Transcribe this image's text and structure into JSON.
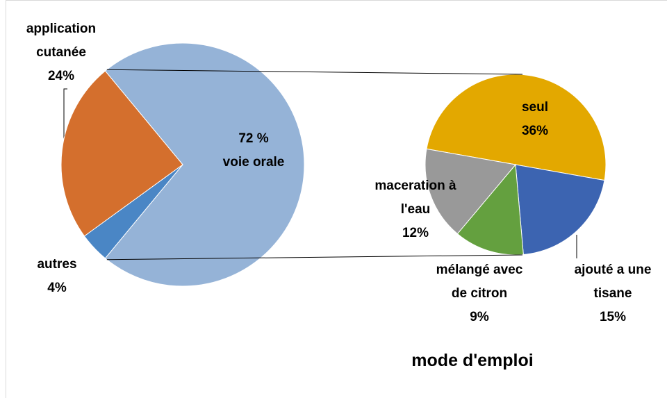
{
  "chart_data": {
    "type": "pie-of-pie",
    "title": "mode d'emploi",
    "categories": [
      "voie orale",
      "autres",
      "application cutanée"
    ],
    "values": [
      72,
      4,
      24
    ],
    "value_labels": [
      "72 %",
      "4%",
      "24%"
    ],
    "colors": [
      "#95b3d7",
      "#4a86c5",
      "#d46f2d"
    ],
    "breakdown": {
      "categories": [
        "seul",
        "ajouté a une tisane",
        "mélangé avec de citron",
        "maceration à l'eau"
      ],
      "values": [
        36,
        15,
        9,
        12
      ],
      "value_labels": [
        "36%",
        "15%",
        "9%",
        "12%"
      ],
      "colors": [
        "#e3a800",
        "#3c64b1",
        "#64a03f",
        "#999999"
      ]
    }
  }
}
